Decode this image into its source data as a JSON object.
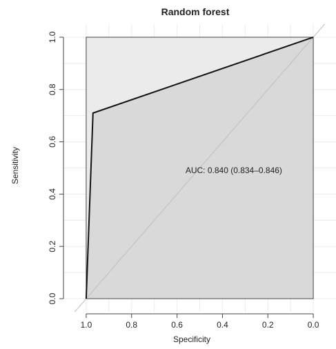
{
  "chart_data": {
    "type": "line",
    "title": "Random forest",
    "xlabel": "Specificity",
    "ylabel": "Sensitivity",
    "xlim": [
      1.1,
      -0.1
    ],
    "ylim": [
      -0.05,
      1.05
    ],
    "x_reversed": true,
    "x_ticks": [
      1.0,
      0.8,
      0.6,
      0.4,
      0.2,
      0.0
    ],
    "x_tick_labels": [
      "1.0",
      "0.8",
      "0.6",
      "0.4",
      "0.2",
      "0.0"
    ],
    "y_ticks": [
      0.0,
      0.2,
      0.4,
      0.6,
      0.8,
      1.0
    ],
    "y_tick_labels": [
      "0.0",
      "0.2",
      "0.4",
      "0.6",
      "0.8",
      "1.0"
    ],
    "grid": true,
    "series": [
      {
        "role": "roc-curve",
        "x": [
          1.0,
          1.0,
          0.97,
          0.0
        ],
        "y": [
          0.0,
          0.0,
          0.71,
          1.0
        ]
      }
    ],
    "reference_line": {
      "x": [
        1.0,
        0.0
      ],
      "y": [
        0.0,
        1.0
      ]
    },
    "auc_annotation": {
      "text": "AUC: 0.840 (0.834–0.846)",
      "x": 0.35,
      "y": 0.48
    }
  },
  "colors": {
    "background": "#ffffff",
    "auc_fill": "#d9d9d9",
    "upper_fill": "#ebebeb",
    "roc_line": "#111111",
    "reference_line": "#bdbdbd",
    "grid": "#ececec",
    "axis": "#444444"
  }
}
